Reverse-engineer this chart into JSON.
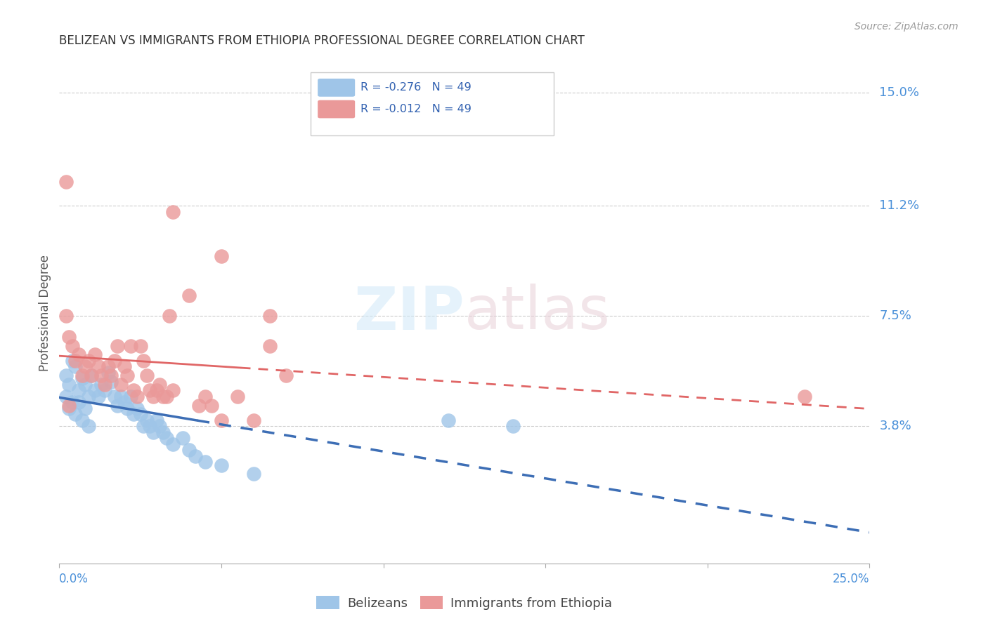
{
  "title": "BELIZEAN VS IMMIGRANTS FROM ETHIOPIA PROFESSIONAL DEGREE CORRELATION CHART",
  "source": "Source: ZipAtlas.com",
  "ylabel": "Professional Degree",
  "xmin": 0.0,
  "xmax": 0.25,
  "ymin": -0.008,
  "ymax": 0.16,
  "watermark_zip": "ZIP",
  "watermark_atlas": "atlas",
  "blue_color": "#9fc5e8",
  "pink_color": "#ea9999",
  "blue_line_color": "#3d6eb5",
  "pink_line_color": "#e06666",
  "blue_scatter": [
    [
      0.002,
      0.055
    ],
    [
      0.003,
      0.052
    ],
    [
      0.004,
      0.06
    ],
    [
      0.005,
      0.058
    ],
    [
      0.006,
      0.05
    ],
    [
      0.007,
      0.054
    ],
    [
      0.008,
      0.052
    ],
    [
      0.009,
      0.048
    ],
    [
      0.01,
      0.055
    ],
    [
      0.011,
      0.05
    ],
    [
      0.012,
      0.048
    ],
    [
      0.013,
      0.052
    ],
    [
      0.014,
      0.05
    ],
    [
      0.015,
      0.056
    ],
    [
      0.016,
      0.053
    ],
    [
      0.017,
      0.048
    ],
    [
      0.018,
      0.045
    ],
    [
      0.019,
      0.048
    ],
    [
      0.02,
      0.046
    ],
    [
      0.021,
      0.044
    ],
    [
      0.022,
      0.048
    ],
    [
      0.023,
      0.042
    ],
    [
      0.024,
      0.044
    ],
    [
      0.025,
      0.042
    ],
    [
      0.026,
      0.038
    ],
    [
      0.027,
      0.04
    ],
    [
      0.028,
      0.038
    ],
    [
      0.029,
      0.036
    ],
    [
      0.03,
      0.04
    ],
    [
      0.031,
      0.038
    ],
    [
      0.032,
      0.036
    ],
    [
      0.033,
      0.034
    ],
    [
      0.035,
      0.032
    ],
    [
      0.038,
      0.034
    ],
    [
      0.04,
      0.03
    ],
    [
      0.042,
      0.028
    ],
    [
      0.045,
      0.026
    ],
    [
      0.05,
      0.025
    ],
    [
      0.06,
      0.022
    ],
    [
      0.002,
      0.048
    ],
    [
      0.003,
      0.044
    ],
    [
      0.004,
      0.046
    ],
    [
      0.005,
      0.042
    ],
    [
      0.006,
      0.046
    ],
    [
      0.007,
      0.04
    ],
    [
      0.008,
      0.044
    ],
    [
      0.009,
      0.038
    ],
    [
      0.12,
      0.04
    ],
    [
      0.14,
      0.038
    ]
  ],
  "pink_scatter": [
    [
      0.002,
      0.075
    ],
    [
      0.003,
      0.068
    ],
    [
      0.004,
      0.065
    ],
    [
      0.005,
      0.06
    ],
    [
      0.006,
      0.062
    ],
    [
      0.007,
      0.055
    ],
    [
      0.008,
      0.058
    ],
    [
      0.009,
      0.06
    ],
    [
      0.01,
      0.055
    ],
    [
      0.011,
      0.062
    ],
    [
      0.012,
      0.058
    ],
    [
      0.013,
      0.055
    ],
    [
      0.014,
      0.052
    ],
    [
      0.015,
      0.058
    ],
    [
      0.016,
      0.055
    ],
    [
      0.017,
      0.06
    ],
    [
      0.018,
      0.065
    ],
    [
      0.019,
      0.052
    ],
    [
      0.02,
      0.058
    ],
    [
      0.021,
      0.055
    ],
    [
      0.022,
      0.065
    ],
    [
      0.023,
      0.05
    ],
    [
      0.024,
      0.048
    ],
    [
      0.025,
      0.065
    ],
    [
      0.026,
      0.06
    ],
    [
      0.027,
      0.055
    ],
    [
      0.028,
      0.05
    ],
    [
      0.029,
      0.048
    ],
    [
      0.03,
      0.05
    ],
    [
      0.031,
      0.052
    ],
    [
      0.032,
      0.048
    ],
    [
      0.033,
      0.048
    ],
    [
      0.034,
      0.075
    ],
    [
      0.035,
      0.05
    ],
    [
      0.04,
      0.082
    ],
    [
      0.043,
      0.045
    ],
    [
      0.045,
      0.048
    ],
    [
      0.047,
      0.045
    ],
    [
      0.05,
      0.04
    ],
    [
      0.055,
      0.048
    ],
    [
      0.06,
      0.04
    ],
    [
      0.065,
      0.065
    ],
    [
      0.07,
      0.055
    ],
    [
      0.002,
      0.12
    ],
    [
      0.035,
      0.11
    ],
    [
      0.05,
      0.095
    ],
    [
      0.065,
      0.075
    ],
    [
      0.23,
      0.048
    ],
    [
      0.003,
      0.045
    ]
  ]
}
